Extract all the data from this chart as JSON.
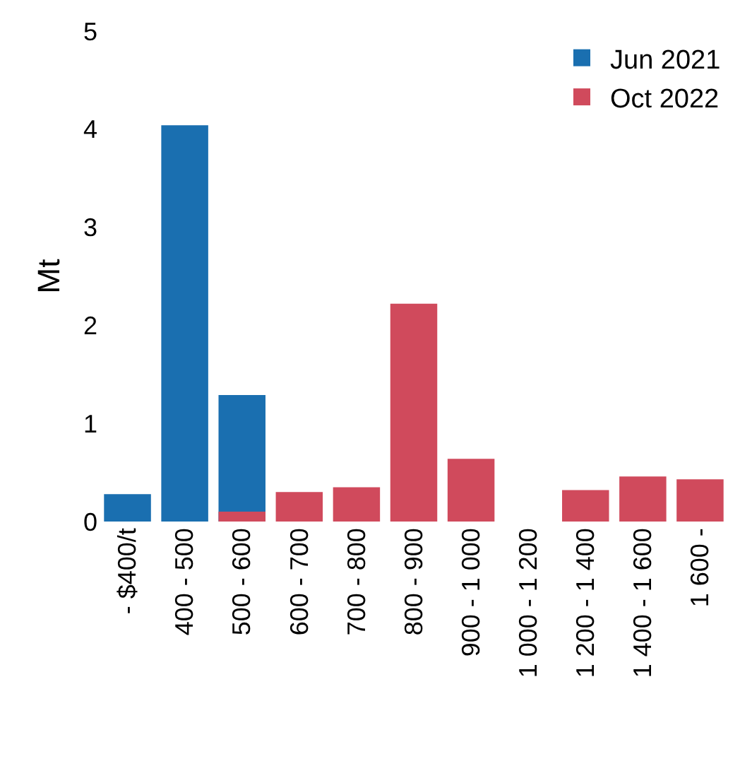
{
  "chart_data": {
    "type": "bar",
    "ylabel": "Mt",
    "categories": [
      "- $400/t",
      "400 - 500",
      "500 - 600",
      "600 - 700",
      "700 - 800",
      "800 - 900",
      "900 - 1 000",
      "1 000 - 1 200",
      "1 200 - 1 400",
      "1 400 - 1 600",
      "1 600 -"
    ],
    "series": [
      {
        "name": "Jun 2021",
        "color": "#1a6fb0",
        "values": [
          0.28,
          4.04,
          1.29,
          null,
          null,
          null,
          null,
          null,
          null,
          null,
          null
        ]
      },
      {
        "name": "Oct 2022",
        "color": "#d04a5c",
        "values": [
          null,
          null,
          0.1,
          0.3,
          0.35,
          2.22,
          0.64,
          0,
          0.32,
          0.46,
          0.43
        ]
      }
    ],
    "ylim": [
      0,
      5
    ],
    "yticks": [
      0,
      1,
      2,
      3,
      4,
      5
    ],
    "legend": "top right"
  }
}
